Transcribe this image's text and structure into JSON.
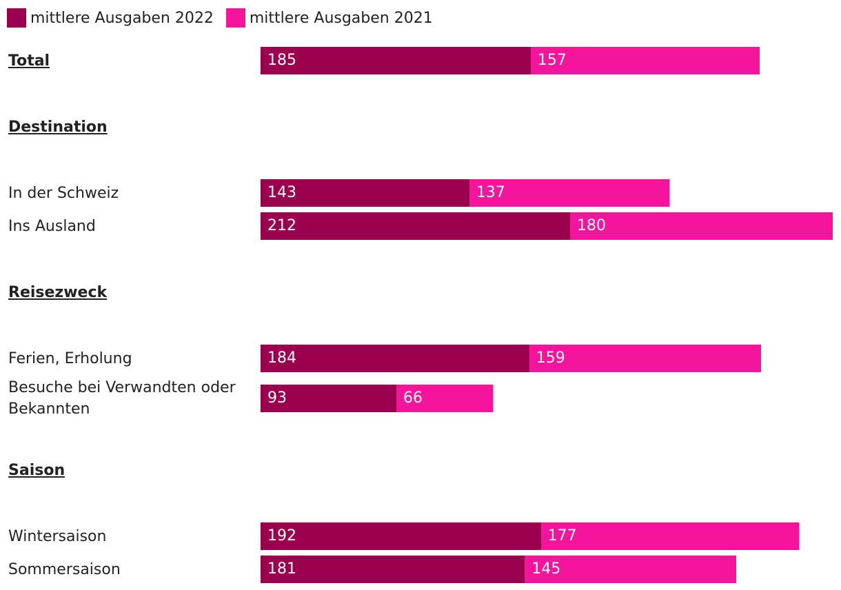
{
  "chart_data": {
    "type": "bar",
    "orientation": "horizontal",
    "stacked": true,
    "series": [
      {
        "name": "mittlere Ausgaben 2022",
        "color": "#9a004e"
      },
      {
        "name": "mittlere Ausgaben 2021",
        "color": "#f5149c"
      }
    ],
    "rows": [
      {
        "label": "Total",
        "header": true,
        "values": [
          185,
          157
        ]
      },
      {
        "label": "Destination",
        "header": true,
        "values": null
      },
      {
        "label": "In der Schweiz",
        "header": false,
        "values": [
          143,
          137
        ]
      },
      {
        "label": "Ins Ausland",
        "header": false,
        "values": [
          212,
          180
        ]
      },
      {
        "label": "Reisezweck",
        "header": true,
        "values": null
      },
      {
        "label": "Ferien, Erholung",
        "header": false,
        "values": [
          184,
          159
        ]
      },
      {
        "label": "Besuche bei Verwandten oder Bekannten",
        "header": false,
        "values": [
          93,
          66
        ]
      },
      {
        "label": "Saison",
        "header": true,
        "values": null
      },
      {
        "label": "Wintersaison",
        "header": false,
        "values": [
          192,
          177
        ]
      },
      {
        "label": "Sommersaison",
        "header": false,
        "values": [
          181,
          145
        ]
      }
    ],
    "legend_position": "top-left",
    "xlim": [
      0,
      392
    ]
  }
}
